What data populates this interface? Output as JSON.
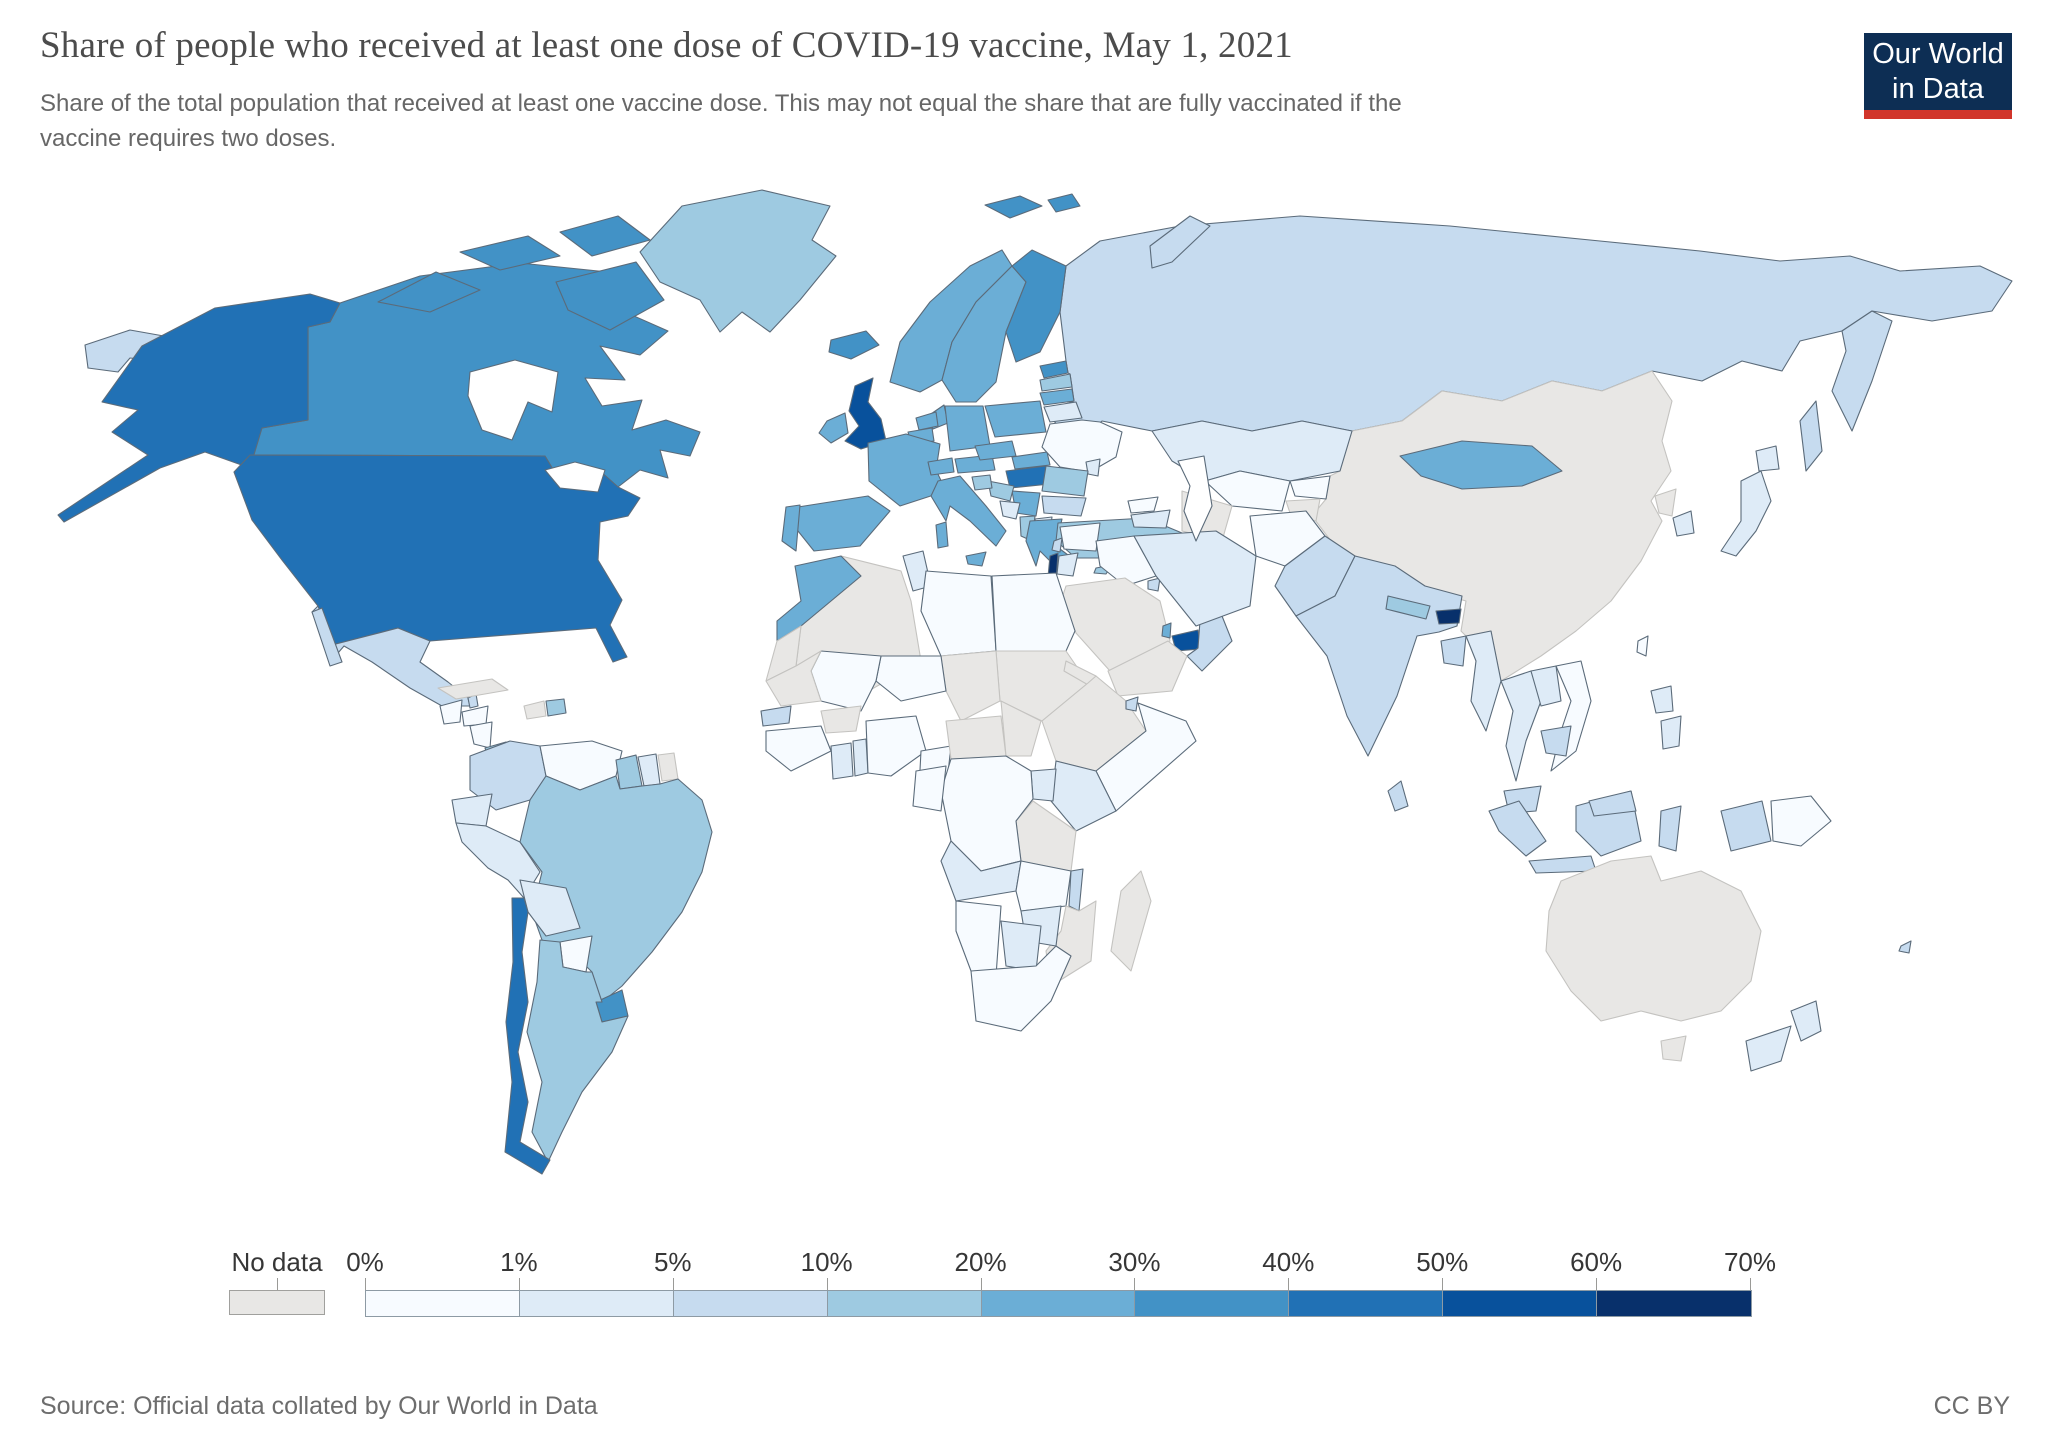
{
  "header": {
    "title": "Share of people who received at least one dose of COVID-19 vaccine, May 1, 2021",
    "subtitle": "Share of the total population that received at least one vaccine dose. This may not equal the share that are fully vaccinated if the vaccine requires two doses."
  },
  "logo": {
    "line1": "Our World",
    "line2": "in Data",
    "background": "#0d2e54",
    "underline": "#d1352b"
  },
  "footer": {
    "source": "Source: Official data collated by Our World in Data",
    "license": "CC BY"
  },
  "legend": {
    "no_data_label": "No data",
    "no_data_color": "#e8e7e5",
    "tick_labels": [
      "0%",
      "1%",
      "5%",
      "10%",
      "20%",
      "30%",
      "40%",
      "50%",
      "60%",
      "70%"
    ],
    "bins": [
      {
        "range": "0-1%",
        "color": "#f7fbff"
      },
      {
        "range": "1-5%",
        "color": "#deebf7"
      },
      {
        "range": "5-10%",
        "color": "#c6dbef"
      },
      {
        "range": "10-20%",
        "color": "#9ecae1"
      },
      {
        "range": "20-30%",
        "color": "#6baed6"
      },
      {
        "range": "30-40%",
        "color": "#4292c6"
      },
      {
        "range": "40-50%",
        "color": "#2171b5"
      },
      {
        "range": "50-60%",
        "color": "#08519c"
      },
      {
        "range": "60-70%",
        "color": "#08306b"
      }
    ]
  },
  "chart_data": {
    "type": "choropleth-map",
    "title": "Share of people who received at least one dose of COVID-19 vaccine",
    "date": "May 1, 2021",
    "unit": "% of total population (at least one dose)",
    "legend_position": "bottom",
    "map_style": {
      "ocean_color": "#ffffff",
      "lake_color": "#ffffff",
      "border_color": "#5b6b7a",
      "no_data_border_color": "#c4c3c0"
    },
    "regions": {
      "united-states": {
        "name": "United States",
        "bin": "40-50%",
        "color": "#2171b5"
      },
      "canada": {
        "name": "Canada",
        "bin": "30-40%",
        "color": "#4292c6"
      },
      "greenland": {
        "name": "Greenland",
        "bin": "10-20%",
        "color": "#9ecae1"
      },
      "mexico": {
        "name": "Mexico",
        "bin": "5-10%",
        "color": "#c6dbef"
      },
      "belize": {
        "name": "Belize",
        "bin": "5-10%",
        "color": "#c6dbef"
      },
      "guatemala": {
        "name": "Guatemala",
        "bin": "0-1%",
        "color": "#f7fbff"
      },
      "honduras": {
        "name": "Honduras",
        "bin": "0-1%",
        "color": "#f7fbff"
      },
      "nicaragua": {
        "name": "Nicaragua",
        "bin": "0-1%",
        "color": "#f7fbff"
      },
      "costa-rica": {
        "name": "Costa Rica",
        "bin": "10-20%",
        "color": "#9ecae1"
      },
      "panama": {
        "name": "Panama",
        "bin": "20-30%",
        "color": "#6baed6"
      },
      "cuba": {
        "name": "Cuba",
        "bin": "No data",
        "color": "#e8e7e5"
      },
      "haiti": {
        "name": "Haiti",
        "bin": "No data",
        "color": "#e8e7e5"
      },
      "dominican-republic": {
        "name": "Dominican Republic",
        "bin": "10-20%",
        "color": "#9ecae1"
      },
      "colombia": {
        "name": "Colombia",
        "bin": "5-10%",
        "color": "#c6dbef"
      },
      "venezuela": {
        "name": "Venezuela",
        "bin": "0-1%",
        "color": "#f7fbff"
      },
      "guyana": {
        "name": "Guyana",
        "bin": "10-20%",
        "color": "#9ecae1"
      },
      "suriname": {
        "name": "Suriname",
        "bin": "1-5%",
        "color": "#deebf7"
      },
      "french-guiana": {
        "name": "French Guiana",
        "bin": "No data",
        "color": "#e8e7e5"
      },
      "ecuador": {
        "name": "Ecuador",
        "bin": "1-5%",
        "color": "#deebf7"
      },
      "peru": {
        "name": "Peru",
        "bin": "1-5%",
        "color": "#deebf7"
      },
      "brazil": {
        "name": "Brazil",
        "bin": "10-20%",
        "color": "#9ecae1"
      },
      "bolivia": {
        "name": "Bolivia",
        "bin": "1-5%",
        "color": "#deebf7"
      },
      "paraguay": {
        "name": "Paraguay",
        "bin": "0-1%",
        "color": "#f7fbff"
      },
      "uruguay": {
        "name": "Uruguay",
        "bin": "30-40%",
        "color": "#4292c6"
      },
      "argentina": {
        "name": "Argentina",
        "bin": "10-20%",
        "color": "#9ecae1"
      },
      "chile": {
        "name": "Chile",
        "bin": "40-50%",
        "color": "#2171b5"
      },
      "iceland": {
        "name": "Iceland",
        "bin": "30-40%",
        "color": "#4292c6"
      },
      "united-kingdom": {
        "name": "United Kingdom",
        "bin": "50-60%",
        "color": "#08519c"
      },
      "ireland": {
        "name": "Ireland",
        "bin": "20-30%",
        "color": "#6baed6"
      },
      "norway": {
        "name": "Norway",
        "bin": "20-30%",
        "color": "#6baed6"
      },
      "sweden": {
        "name": "Sweden",
        "bin": "20-30%",
        "color": "#6baed6"
      },
      "finland": {
        "name": "Finland",
        "bin": "30-40%",
        "color": "#4292c6"
      },
      "denmark": {
        "name": "Denmark",
        "bin": "20-30%",
        "color": "#6baed6"
      },
      "estonia": {
        "name": "Estonia",
        "bin": "30-40%",
        "color": "#4292c6"
      },
      "latvia": {
        "name": "Latvia",
        "bin": "10-20%",
        "color": "#9ecae1"
      },
      "lithuania": {
        "name": "Lithuania",
        "bin": "20-30%",
        "color": "#6baed6"
      },
      "belarus": {
        "name": "Belarus",
        "bin": "1-5%",
        "color": "#deebf7"
      },
      "poland": {
        "name": "Poland",
        "bin": "20-30%",
        "color": "#6baed6"
      },
      "germany": {
        "name": "Germany",
        "bin": "20-30%",
        "color": "#6baed6"
      },
      "netherlands": {
        "name": "Netherlands",
        "bin": "20-30%",
        "color": "#6baed6"
      },
      "belgium": {
        "name": "Belgium",
        "bin": "20-30%",
        "color": "#6baed6"
      },
      "france": {
        "name": "France",
        "bin": "20-30%",
        "color": "#6baed6"
      },
      "spain": {
        "name": "Spain",
        "bin": "20-30%",
        "color": "#6baed6"
      },
      "portugal": {
        "name": "Portugal",
        "bin": "20-30%",
        "color": "#6baed6"
      },
      "switzerland": {
        "name": "Switzerland",
        "bin": "20-30%",
        "color": "#6baed6"
      },
      "austria": {
        "name": "Austria",
        "bin": "20-30%",
        "color": "#6baed6"
      },
      "czechia": {
        "name": "Czechia",
        "bin": "20-30%",
        "color": "#6baed6"
      },
      "slovakia": {
        "name": "Slovakia",
        "bin": "20-30%",
        "color": "#6baed6"
      },
      "hungary": {
        "name": "Hungary",
        "bin": "40-50%",
        "color": "#2171b5"
      },
      "ukraine": {
        "name": "Ukraine",
        "bin": "0-1%",
        "color": "#f7fbff"
      },
      "moldova": {
        "name": "Moldova",
        "bin": "1-5%",
        "color": "#deebf7"
      },
      "romania": {
        "name": "Romania",
        "bin": "10-20%",
        "color": "#9ecae1"
      },
      "serbia": {
        "name": "Serbia",
        "bin": "20-30%",
        "color": "#6baed6"
      },
      "croatia": {
        "name": "Croatia",
        "bin": "10-20%",
        "color": "#9ecae1"
      },
      "slovenia": {
        "name": "Slovenia",
        "bin": "10-20%",
        "color": "#9ecae1"
      },
      "bosnia-and-herzegovina": {
        "name": "Bosnia and Herzegovina",
        "bin": "1-5%",
        "color": "#deebf7"
      },
      "albania": {
        "name": "Albania",
        "bin": "10-20%",
        "color": "#9ecae1"
      },
      "north-macedonia": {
        "name": "North Macedonia",
        "bin": "1-5%",
        "color": "#deebf7"
      },
      "bulgaria": {
        "name": "Bulgaria",
        "bin": "5-10%",
        "color": "#c6dbef"
      },
      "greece": {
        "name": "Greece",
        "bin": "20-30%",
        "color": "#6baed6"
      },
      "italy": {
        "name": "Italy",
        "bin": "20-30%",
        "color": "#6baed6"
      },
      "turkey": {
        "name": "Turkey",
        "bin": "10-20%",
        "color": "#9ecae1"
      },
      "cyprus": {
        "name": "Cyprus",
        "bin": "10-20%",
        "color": "#9ecae1"
      },
      "svalbard": {
        "name": "Svalbard",
        "bin": "30-40%",
        "color": "#4292c6"
      },
      "russia": {
        "name": "Russia",
        "bin": "5-10%",
        "color": "#c6dbef"
      },
      "kazakhstan": {
        "name": "Kazakhstan",
        "bin": "1-5%",
        "color": "#deebf7"
      },
      "uzbekistan": {
        "name": "Uzbekistan",
        "bin": "0-1%",
        "color": "#f7fbff"
      },
      "turkmenistan": {
        "name": "Turkmenistan",
        "bin": "No data",
        "color": "#e8e7e5"
      },
      "kyrgyzstan": {
        "name": "Kyrgyzstan",
        "bin": "0-1%",
        "color": "#f7fbff"
      },
      "tajikistan": {
        "name": "Tajikistan",
        "bin": "No data",
        "color": "#e8e7e5"
      },
      "georgia": {
        "name": "Georgia",
        "bin": "0-1%",
        "color": "#f7fbff"
      },
      "azerbaijan": {
        "name": "Azerbaijan",
        "bin": "1-5%",
        "color": "#deebf7"
      },
      "syria": {
        "name": "Syria",
        "bin": "0-1%",
        "color": "#f7fbff"
      },
      "lebanon": {
        "name": "Lebanon",
        "bin": "5-10%",
        "color": "#c6dbef"
      },
      "israel": {
        "name": "Israel",
        "bin": "60-70%",
        "color": "#08306b"
      },
      "jordan": {
        "name": "Jordan",
        "bin": "1-5%",
        "color": "#deebf7"
      },
      "iraq": {
        "name": "Iraq",
        "bin": "0-1%",
        "color": "#f7fbff"
      },
      "saudi-arabia": {
        "name": "Saudi Arabia",
        "bin": "No data",
        "color": "#e8e7e5"
      },
      "kuwait": {
        "name": "Kuwait",
        "bin": "5-10%",
        "color": "#c6dbef"
      },
      "qatar": {
        "name": "Qatar",
        "bin": "20-30%",
        "color": "#6baed6"
      },
      "united-arab-emirates": {
        "name": "United Arab Emirates",
        "bin": "50-60%",
        "color": "#08519c"
      },
      "oman": {
        "name": "Oman",
        "bin": "5-10%",
        "color": "#c6dbef"
      },
      "yemen": {
        "name": "Yemen",
        "bin": "No data",
        "color": "#e8e7e5"
      },
      "iran": {
        "name": "Iran",
        "bin": "1-5%",
        "color": "#deebf7"
      },
      "afghanistan": {
        "name": "Afghanistan",
        "bin": "0-1%",
        "color": "#f7fbff"
      },
      "pakistan": {
        "name": "Pakistan",
        "bin": "5-10%",
        "color": "#c6dbef"
      },
      "india": {
        "name": "India",
        "bin": "5-10%",
        "color": "#c6dbef"
      },
      "nepal": {
        "name": "Nepal",
        "bin": "10-20%",
        "color": "#9ecae1"
      },
      "bhutan": {
        "name": "Bhutan",
        "bin": "60-70%",
        "color": "#08306b"
      },
      "bangladesh": {
        "name": "Bangladesh",
        "bin": "5-10%",
        "color": "#c6dbef"
      },
      "sri-lanka": {
        "name": "Sri Lanka",
        "bin": "5-10%",
        "color": "#c6dbef"
      },
      "myanmar": {
        "name": "Myanmar",
        "bin": "1-5%",
        "color": "#deebf7"
      },
      "china": {
        "name": "China",
        "bin": "No data",
        "color": "#e8e7e5"
      },
      "mongolia": {
        "name": "Mongolia",
        "bin": "20-30%",
        "color": "#6baed6"
      },
      "north-korea": {
        "name": "North Korea",
        "bin": "No data",
        "color": "#e8e7e5"
      },
      "south-korea": {
        "name": "South Korea",
        "bin": "1-5%",
        "color": "#deebf7"
      },
      "japan": {
        "name": "Japan",
        "bin": "1-5%",
        "color": "#deebf7"
      },
      "taiwan": {
        "name": "Taiwan",
        "bin": "0-1%",
        "color": "#f7fbff"
      },
      "thailand": {
        "name": "Thailand",
        "bin": "1-5%",
        "color": "#deebf7"
      },
      "laos": {
        "name": "Laos",
        "bin": "1-5%",
        "color": "#deebf7"
      },
      "vietnam": {
        "name": "Vietnam",
        "bin": "0-1%",
        "color": "#f7fbff"
      },
      "cambodia": {
        "name": "Cambodia",
        "bin": "5-10%",
        "color": "#c6dbef"
      },
      "malaysia": {
        "name": "Malaysia",
        "bin": "5-10%",
        "color": "#c6dbef"
      },
      "philippines": {
        "name": "Philippines",
        "bin": "1-5%",
        "color": "#deebf7"
      },
      "indonesia": {
        "name": "Indonesia",
        "bin": "5-10%",
        "color": "#c6dbef"
      },
      "papua-new-guinea": {
        "name": "Papua New Guinea",
        "bin": "0-1%",
        "color": "#f7fbff"
      },
      "australia": {
        "name": "Australia",
        "bin": "No data",
        "color": "#e8e7e5"
      },
      "new-zealand": {
        "name": "New Zealand",
        "bin": "1-5%",
        "color": "#deebf7"
      },
      "fiji": {
        "name": "Fiji",
        "bin": "5-10%",
        "color": "#c6dbef"
      },
      "morocco": {
        "name": "Morocco",
        "bin": "20-30%",
        "color": "#6baed6"
      },
      "western-sahara": {
        "name": "Western Sahara",
        "bin": "No data",
        "color": "#e8e7e5"
      },
      "algeria": {
        "name": "Algeria",
        "bin": "No data",
        "color": "#e8e7e5"
      },
      "tunisia": {
        "name": "Tunisia",
        "bin": "1-5%",
        "color": "#deebf7"
      },
      "libya": {
        "name": "Libya",
        "bin": "0-1%",
        "color": "#f7fbff"
      },
      "egypt": {
        "name": "Egypt",
        "bin": "0-1%",
        "color": "#f7fbff"
      },
      "sudan": {
        "name": "Sudan",
        "bin": "No data",
        "color": "#e8e7e5"
      },
      "chad": {
        "name": "Chad",
        "bin": "No data",
        "color": "#e8e7e5"
      },
      "niger": {
        "name": "Niger",
        "bin": "0-1%",
        "color": "#f7fbff"
      },
      "mali": {
        "name": "Mali",
        "bin": "0-1%",
        "color": "#f7fbff"
      },
      "mauritania": {
        "name": "Mauritania",
        "bin": "No data",
        "color": "#e8e7e5"
      },
      "senegal": {
        "name": "Senegal",
        "bin": "5-10%",
        "color": "#c6dbef"
      },
      "guinea": {
        "name": "Guinea",
        "bin": "0-1%",
        "color": "#f7fbff"
      },
      "burkina-faso": {
        "name": "Burkina Faso",
        "bin": "No data",
        "color": "#e8e7e5"
      },
      "ghana": {
        "name": "Ghana",
        "bin": "1-5%",
        "color": "#deebf7"
      },
      "togo": {
        "name": "Togo",
        "bin": "1-5%",
        "color": "#deebf7"
      },
      "nigeria": {
        "name": "Nigeria",
        "bin": "0-1%",
        "color": "#f7fbff"
      },
      "cameroon": {
        "name": "Cameroon",
        "bin": "0-1%",
        "color": "#f7fbff"
      },
      "central-african-republic": {
        "name": "Central African Republic",
        "bin": "No data",
        "color": "#e8e7e5"
      },
      "south-sudan": {
        "name": "South Sudan",
        "bin": "No data",
        "color": "#e8e7e5"
      },
      "ethiopia": {
        "name": "Ethiopia",
        "bin": "No data",
        "color": "#e8e7e5"
      },
      "eritrea": {
        "name": "Eritrea",
        "bin": "No data",
        "color": "#e8e7e5"
      },
      "djibouti": {
        "name": "Djibouti",
        "bin": "5-10%",
        "color": "#c6dbef"
      },
      "somalia": {
        "name": "Somalia",
        "bin": "0-1%",
        "color": "#f7fbff"
      },
      "kenya": {
        "name": "Kenya",
        "bin": "1-5%",
        "color": "#deebf7"
      },
      "uganda": {
        "name": "Uganda",
        "bin": "1-5%",
        "color": "#deebf7"
      },
      "tanzania": {
        "name": "Tanzania",
        "bin": "No data",
        "color": "#e8e7e5"
      },
      "democratic-republic-of-congo": {
        "name": "Democratic Republic of Congo",
        "bin": "0-1%",
        "color": "#f7fbff"
      },
      "gabon": {
        "name": "Gabon",
        "bin": "0-1%",
        "color": "#f7fbff"
      },
      "angola": {
        "name": "Angola",
        "bin": "1-5%",
        "color": "#deebf7"
      },
      "zambia": {
        "name": "Zambia",
        "bin": "0-1%",
        "color": "#f7fbff"
      },
      "malawi": {
        "name": "Malawi",
        "bin": "5-10%",
        "color": "#c6dbef"
      },
      "mozambique": {
        "name": "Mozambique",
        "bin": "No data",
        "color": "#e8e7e5"
      },
      "zimbabwe": {
        "name": "Zimbabwe",
        "bin": "1-5%",
        "color": "#deebf7"
      },
      "botswana": {
        "name": "Botswana",
        "bin": "1-5%",
        "color": "#deebf7"
      },
      "namibia": {
        "name": "Namibia",
        "bin": "0-1%",
        "color": "#f7fbff"
      },
      "south-africa": {
        "name": "South Africa",
        "bin": "0-1%",
        "color": "#f7fbff"
      },
      "madagascar": {
        "name": "Madagascar",
        "bin": "No data",
        "color": "#e8e7e5"
      }
    }
  }
}
